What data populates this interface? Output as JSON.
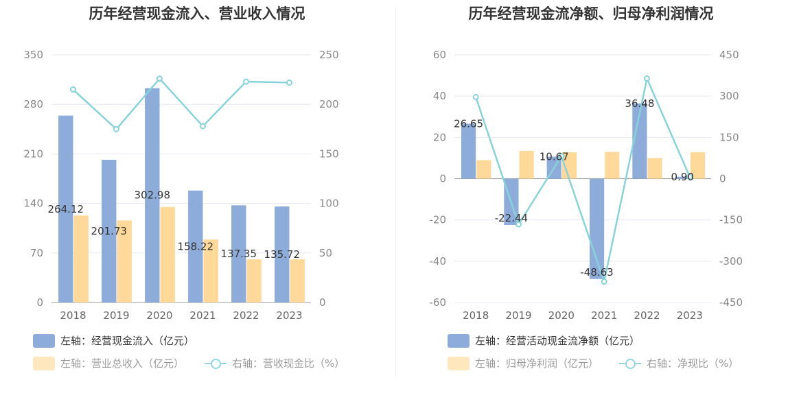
{
  "colors": {
    "bar1": "#8eacda",
    "bar2": "#ffd999",
    "line": "#87d3d9",
    "grid": "#e4e8f0",
    "axis": "#999999"
  },
  "chart_data": [
    {
      "type": "bar",
      "title": "历年经营现金流入、营业收入情况",
      "categories": [
        "2018",
        "2019",
        "2020",
        "2021",
        "2022",
        "2023"
      ],
      "left_axis": {
        "ticks": [
          "0",
          "70",
          "140",
          "210",
          "280",
          "350"
        ],
        "range": [
          0,
          350
        ]
      },
      "right_axis": {
        "ticks": [
          "0",
          "50",
          "100",
          "150",
          "200",
          "250"
        ],
        "range": [
          0,
          250
        ]
      },
      "series": [
        {
          "name": "左轴：经营现金流入（亿元）",
          "kind": "bar",
          "axis": "left",
          "values": [
            264.12,
            201.73,
            302.98,
            158.22,
            137.35,
            135.72
          ],
          "labels": [
            "264.12",
            "201.73",
            "302.98",
            "158.22",
            "137.35",
            "135.72"
          ]
        },
        {
          "name": "左轴：营业总收入（亿元）",
          "kind": "bar",
          "axis": "left",
          "values": [
            123,
            116,
            135,
            89,
            61,
            61
          ]
        },
        {
          "name": "右轴：营收现金比（%）",
          "kind": "line",
          "axis": "right",
          "values": [
            215,
            175,
            226,
            178,
            223,
            222
          ]
        }
      ]
    },
    {
      "type": "bar",
      "title": "历年经营现金流净额、归母净利润情况",
      "categories": [
        "2018",
        "2019",
        "2020",
        "2021",
        "2022",
        "2023"
      ],
      "left_axis": {
        "ticks": [
          "-60",
          "-40",
          "-20",
          "0",
          "20",
          "40",
          "60"
        ],
        "range": [
          -60,
          60
        ]
      },
      "right_axis": {
        "ticks": [
          "-450",
          "-300",
          "-150",
          "0",
          "150",
          "300",
          "450"
        ],
        "range": [
          -450,
          450
        ]
      },
      "series": [
        {
          "name": "左轴：经营活动现金流净额（亿元）",
          "kind": "bar",
          "axis": "left",
          "values": [
            26.65,
            -22.44,
            10.67,
            -48.63,
            36.48,
            0.9
          ],
          "labels": [
            "26.65",
            "-22.44",
            "10.67",
            "-48.63",
            "36.48",
            "0.90"
          ]
        },
        {
          "name": "左轴：归母净利润（亿元）",
          "kind": "bar",
          "axis": "left",
          "values": [
            9,
            13.5,
            12.8,
            13,
            10,
            12.8
          ]
        },
        {
          "name": "右轴：净现比（%）",
          "kind": "line",
          "axis": "right",
          "values": [
            297,
            -166,
            82,
            -374,
            364,
            7
          ]
        }
      ]
    }
  ]
}
